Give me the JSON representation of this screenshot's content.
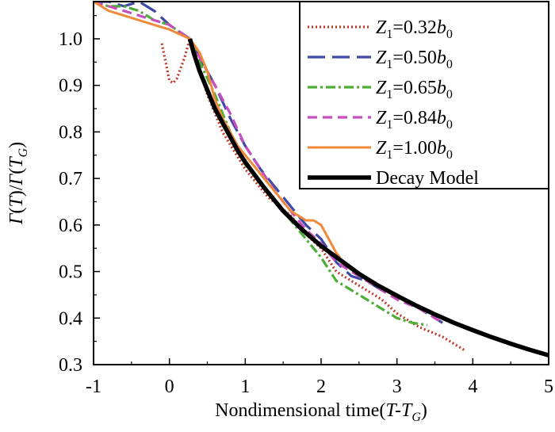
{
  "chart_data": {
    "type": "line",
    "title": "",
    "xlabel": "Nondimensional time(T-T_G)",
    "ylabel": "Γ(T)/Γ(T_G)",
    "xlim": [
      -1,
      5
    ],
    "ylim": [
      0.3,
      1.08
    ],
    "xticks": [
      -1,
      0,
      1,
      2,
      3,
      4,
      5
    ],
    "yticks": [
      0.3,
      0.4,
      0.5,
      0.6,
      0.7,
      0.8,
      0.9,
      1.0
    ],
    "xtick_labels": [
      "-1",
      "0",
      "1",
      "2",
      "3",
      "4",
      "5"
    ],
    "ytick_labels": [
      "0.3",
      "0.4",
      "0.5",
      "0.6",
      "0.7",
      "0.8",
      "0.9",
      "1.0"
    ],
    "legend_position": "top-right",
    "series": [
      {
        "name": "Z1=0.32b0",
        "label": {
          "pre": "Z",
          "sub1": "1",
          "mid": "=0.32",
          "b": "b",
          "sub2": "0"
        },
        "color": "#c0392b",
        "dash": "dotted",
        "width": 3.2,
        "x": [
          -0.1,
          -0.05,
          0.0,
          0.05,
          0.1,
          0.2,
          0.27,
          0.35,
          0.5,
          0.7,
          1.0,
          1.3,
          1.6,
          1.8,
          2.0,
          2.2,
          2.5,
          2.8,
          3.0,
          3.3,
          3.6,
          3.9
        ],
        "y": [
          0.99,
          0.95,
          0.91,
          0.905,
          0.915,
          0.96,
          1.0,
          0.96,
          0.88,
          0.8,
          0.72,
          0.66,
          0.62,
          0.58,
          0.55,
          0.5,
          0.47,
          0.44,
          0.41,
          0.38,
          0.36,
          0.33
        ]
      },
      {
        "name": "Z1=0.50b0",
        "label": {
          "pre": "Z",
          "sub1": "1",
          "mid": "=0.50",
          "b": "b",
          "sub2": "0"
        },
        "color": "#3f4aa6",
        "dash": "longdash",
        "width": 3.2,
        "x": [
          -1.0,
          -0.8,
          -0.6,
          -0.4,
          -0.2,
          0.0,
          0.27,
          0.4,
          0.6,
          0.8,
          1.0,
          1.2,
          1.4,
          1.6,
          1.8,
          2.0,
          2.2,
          2.4,
          2.6,
          2.8,
          3.0,
          3.2,
          3.4,
          3.6
        ],
        "y": [
          1.08,
          1.08,
          1.07,
          1.08,
          1.06,
          1.03,
          1.0,
          0.96,
          0.9,
          0.83,
          0.77,
          0.72,
          0.68,
          0.64,
          0.6,
          0.57,
          0.52,
          0.49,
          0.48,
          0.46,
          0.45,
          0.43,
          0.41,
          0.39
        ]
      },
      {
        "name": "Z1=0.65b0",
        "label": {
          "pre": "Z",
          "sub1": "1",
          "mid": "=0.65",
          "b": "b",
          "sub2": "0"
        },
        "color": "#4cae35",
        "dash": "dashdot",
        "width": 3.2,
        "x": [
          -1.0,
          -0.8,
          -0.6,
          -0.4,
          -0.2,
          0.0,
          0.27,
          0.4,
          0.6,
          0.8,
          1.0,
          1.2,
          1.4,
          1.6,
          1.8,
          2.0,
          2.2,
          2.4,
          2.6,
          2.8,
          3.0,
          3.2,
          3.4
        ],
        "y": [
          1.08,
          1.07,
          1.07,
          1.06,
          1.04,
          1.03,
          1.0,
          0.95,
          0.88,
          0.8,
          0.73,
          0.69,
          0.65,
          0.61,
          0.57,
          0.53,
          0.48,
          0.46,
          0.44,
          0.42,
          0.4,
          0.39,
          0.385
        ]
      },
      {
        "name": "Z1=0.84b0",
        "label": {
          "pre": "Z",
          "sub1": "1",
          "mid": "=0.84",
          "b": "b",
          "sub2": "0"
        },
        "color": "#c64fbd",
        "dash": "dash",
        "width": 3.2,
        "x": [
          -1.0,
          -0.8,
          -0.6,
          -0.4,
          -0.2,
          0.0,
          0.27,
          0.4,
          0.6,
          0.8,
          1.0,
          1.2,
          1.4,
          1.6,
          1.8,
          2.0,
          2.2,
          2.4,
          2.6,
          2.8,
          3.0,
          3.3,
          3.6
        ],
        "y": [
          1.08,
          1.07,
          1.06,
          1.05,
          1.04,
          1.03,
          1.0,
          0.96,
          0.9,
          0.84,
          0.77,
          0.72,
          0.67,
          0.63,
          0.59,
          0.56,
          0.52,
          0.5,
          0.48,
          0.46,
          0.44,
          0.42,
          0.39
        ]
      },
      {
        "name": "Z1=1.00b0",
        "label": {
          "pre": "Z",
          "sub1": "1",
          "mid": "=1.00",
          "b": "b",
          "sub2": "0"
        },
        "color": "#f08a3a",
        "dash": "solid",
        "width": 3,
        "x": [
          -1.0,
          -0.8,
          -0.6,
          -0.4,
          -0.2,
          0.0,
          0.27,
          0.4,
          0.5,
          0.6,
          0.7,
          0.8,
          0.9,
          1.0,
          1.1,
          1.2,
          1.3,
          1.4,
          1.5,
          1.6,
          1.7,
          1.8,
          1.9,
          2.0,
          2.1,
          2.2,
          2.25
        ],
        "y": [
          1.08,
          1.06,
          1.05,
          1.04,
          1.03,
          1.02,
          1.0,
          0.97,
          0.93,
          0.87,
          0.83,
          0.8,
          0.77,
          0.75,
          0.73,
          0.71,
          0.69,
          0.67,
          0.65,
          0.63,
          0.62,
          0.61,
          0.61,
          0.6,
          0.57,
          0.54,
          0.53
        ]
      },
      {
        "name": "Decay Model",
        "label": {
          "pre": "Decay Model",
          "sub1": "",
          "mid": "",
          "b": "",
          "sub2": ""
        },
        "color": "#000000",
        "dash": "solid",
        "width": 5.5,
        "x": [
          0.27,
          0.32,
          0.4,
          0.5,
          0.6,
          0.7,
          0.8,
          0.9,
          1.0,
          1.25,
          1.5,
          1.75,
          2.0,
          2.25,
          2.5,
          2.75,
          3.0,
          3.25,
          3.5,
          3.75,
          4.0,
          4.25,
          4.5,
          4.75,
          5.0
        ],
        "y": [
          1.0,
          0.97,
          0.93,
          0.89,
          0.85,
          0.82,
          0.79,
          0.76,
          0.735,
          0.68,
          0.63,
          0.59,
          0.555,
          0.525,
          0.495,
          0.47,
          0.448,
          0.427,
          0.408,
          0.39,
          0.374,
          0.359,
          0.345,
          0.332,
          0.32
        ]
      }
    ]
  }
}
